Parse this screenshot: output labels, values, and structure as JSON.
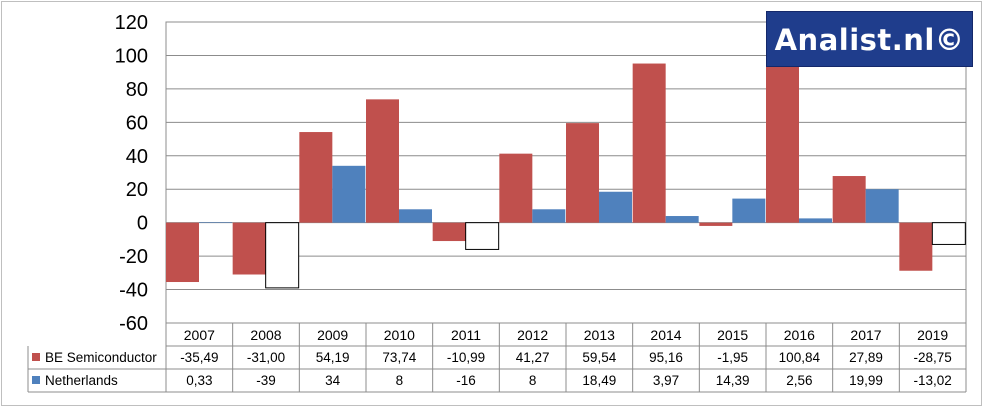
{
  "watermark": "Analist.nl©",
  "chart_data": {
    "type": "bar",
    "categories": [
      "2007",
      "2008",
      "2009",
      "2010",
      "2011",
      "2012",
      "2013",
      "2014",
      "2015",
      "2016",
      "2017",
      "2019"
    ],
    "series": [
      {
        "name": "BE Semiconductor",
        "color": "#c0504d",
        "values": [
          -35.49,
          -31.0,
          54.19,
          73.74,
          -10.99,
          41.27,
          59.54,
          95.16,
          -1.95,
          100.84,
          27.89,
          -28.75
        ],
        "labels": [
          "-35,49",
          "-31,00",
          "54,19",
          "73,74",
          "-10,99",
          "41,27",
          "59,54",
          "95,16",
          "-1,95",
          "100,84",
          "27,89",
          "-28,75"
        ]
      },
      {
        "name": "Netherlands",
        "color": "#4f81bd",
        "values": [
          0.33,
          -39,
          34,
          8,
          -16,
          8,
          18.49,
          3.97,
          14.39,
          2.56,
          19.99,
          -13.02
        ],
        "labels": [
          "0,33",
          "-39",
          "34",
          "8",
          "-16",
          "8",
          "18,49",
          "3,97",
          "14,39",
          "2,56",
          "19,99",
          "-13,02"
        ],
        "negative_fill": "#ffffff"
      }
    ],
    "ylim": [
      -60,
      120
    ],
    "yticks": [
      "-60",
      "-40",
      "-20",
      "0",
      "20",
      "40",
      "60",
      "80",
      "100",
      "120"
    ],
    "grid": true,
    "legend": "data-table"
  }
}
